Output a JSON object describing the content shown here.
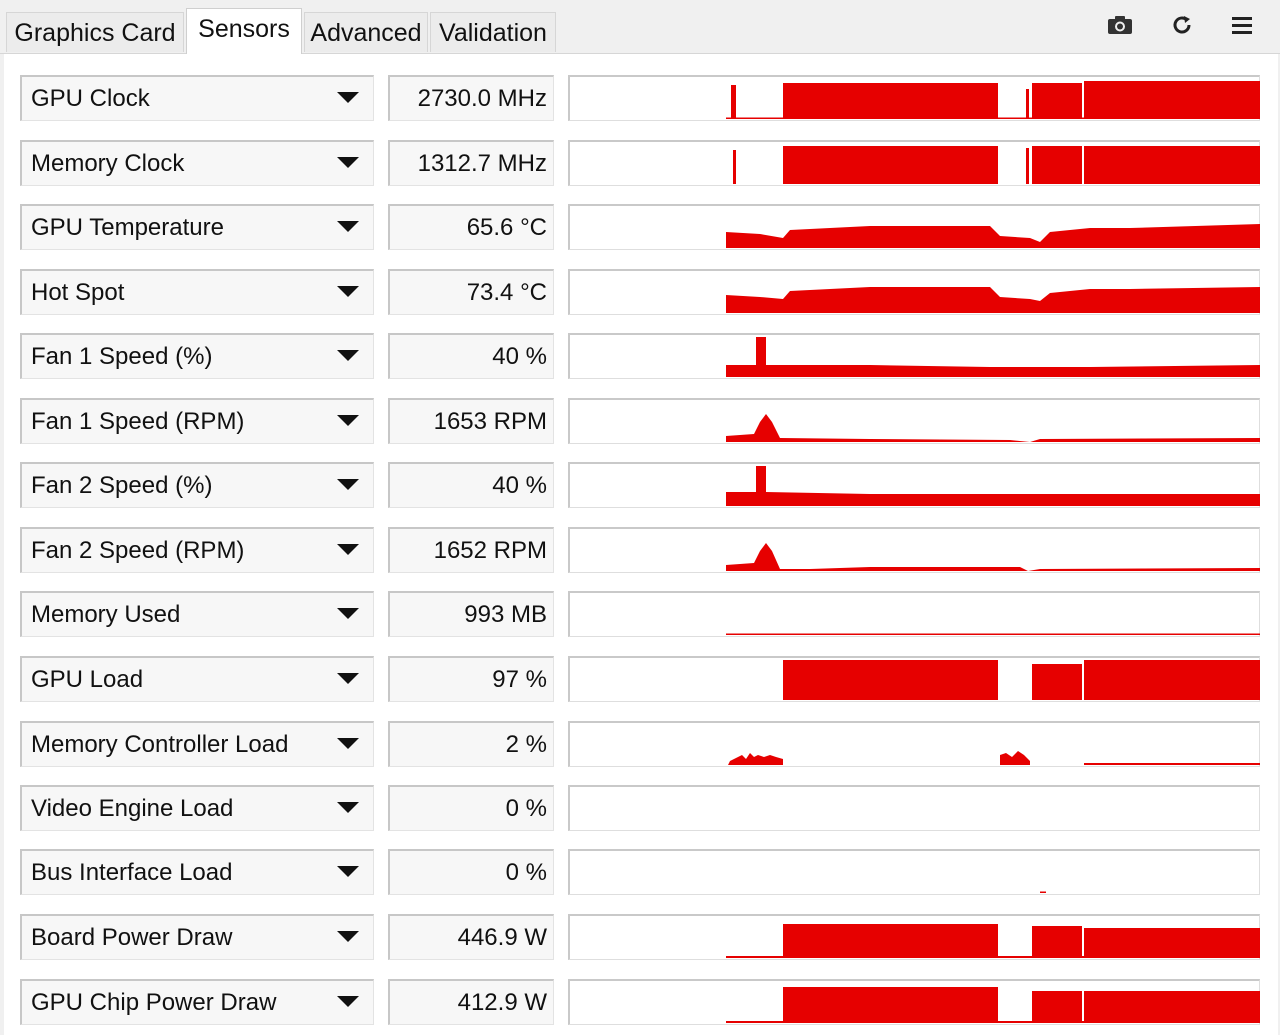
{
  "tabs": [
    {
      "label": "Graphics Card",
      "active": false
    },
    {
      "label": "Sensors",
      "active": true
    },
    {
      "label": "Advanced",
      "active": false
    },
    {
      "label": "Validation",
      "active": false
    }
  ],
  "toolbar": {
    "icons": [
      "camera-icon",
      "refresh-icon",
      "menu-icon"
    ]
  },
  "colors": {
    "graph": "#e60000",
    "background": "#f0f0f0",
    "panel": "#ffffff"
  },
  "sensors": [
    {
      "label": "GPU Clock",
      "value": "2730.0 MHz"
    },
    {
      "label": "Memory Clock",
      "value": "1312.7 MHz"
    },
    {
      "label": "GPU Temperature",
      "value": "65.6 °C"
    },
    {
      "label": "Hot Spot",
      "value": "73.4 °C"
    },
    {
      "label": "Fan 1 Speed (%)",
      "value": "40 %"
    },
    {
      "label": "Fan 1 Speed (RPM)",
      "value": "1653 RPM"
    },
    {
      "label": "Fan 2 Speed (%)",
      "value": "40 %"
    },
    {
      "label": "Fan 2 Speed (RPM)",
      "value": "1652 RPM"
    },
    {
      "label": "Memory Used",
      "value": "993 MB"
    },
    {
      "label": "GPU Load",
      "value": "97 %"
    },
    {
      "label": "Memory Controller Load",
      "value": "2 %"
    },
    {
      "label": "Video Engine Load",
      "value": "0 %"
    },
    {
      "label": "Bus Interface Load",
      "value": "0 %"
    },
    {
      "label": "Board Power Draw",
      "value": "446.9 W"
    },
    {
      "label": "GPU Chip Power Draw",
      "value": "412.9 W"
    }
  ]
}
